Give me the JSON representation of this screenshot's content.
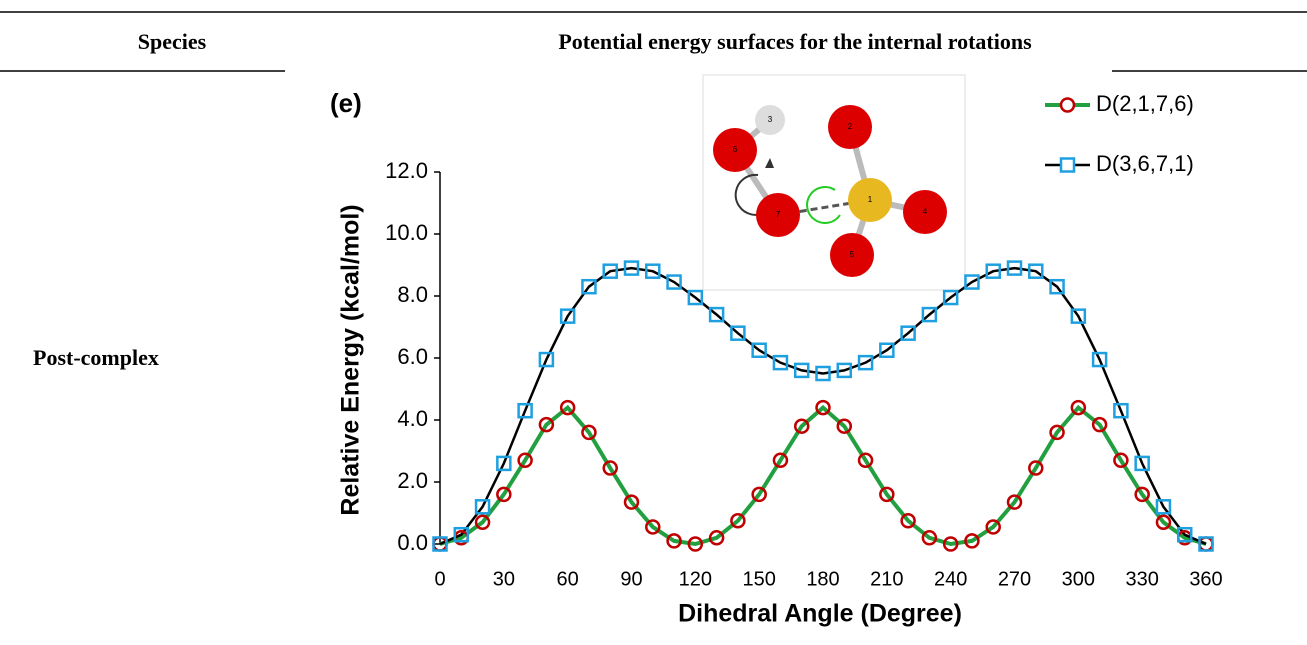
{
  "table": {
    "headers": [
      "Species",
      "Potential energy surfaces for the internal rotations"
    ],
    "rows": [
      [
        "Post-complex"
      ]
    ]
  },
  "inset": {
    "atom_labels": [
      "1",
      "2",
      "3",
      "4",
      "5",
      "6",
      "7"
    ]
  },
  "chart_data": {
    "type": "line",
    "panel_label": "(e)",
    "x_label": "Dihedral Angle (Degree)",
    "y_label": "Relative Energy (kcal/mol)",
    "x": [
      0,
      10,
      20,
      30,
      40,
      50,
      60,
      70,
      80,
      90,
      100,
      110,
      120,
      130,
      140,
      150,
      160,
      170,
      180,
      190,
      200,
      210,
      220,
      230,
      240,
      250,
      260,
      270,
      280,
      290,
      300,
      310,
      320,
      330,
      340,
      350,
      360
    ],
    "series": [
      {
        "name": "D(2,1,7,6)",
        "color": "#22a040",
        "marker": "circle",
        "marker_color": "#c00000",
        "values": [
          0,
          0.2,
          0.7,
          1.6,
          2.7,
          3.85,
          4.4,
          3.6,
          2.45,
          1.35,
          0.55,
          0.1,
          0,
          0.2,
          0.75,
          1.6,
          2.7,
          3.8,
          4.4,
          3.8,
          2.7,
          1.6,
          0.75,
          0.2,
          0,
          0.1,
          0.55,
          1.35,
          2.45,
          3.6,
          4.4,
          3.85,
          2.7,
          1.6,
          0.7,
          0.2,
          0
        ]
      },
      {
        "name": "D(3,6,7,1)",
        "color": "#000000",
        "marker": "square",
        "marker_color": "#1ea0e0",
        "values": [
          0,
          0.3,
          1.2,
          2.6,
          4.3,
          5.95,
          7.35,
          8.3,
          8.8,
          8.9,
          8.8,
          8.45,
          7.95,
          7.4,
          6.8,
          6.25,
          5.85,
          5.6,
          5.5,
          5.6,
          5.85,
          6.25,
          6.8,
          7.4,
          7.95,
          8.45,
          8.8,
          8.9,
          8.8,
          8.3,
          7.35,
          5.95,
          4.3,
          2.6,
          1.2,
          0.3,
          0
        ]
      }
    ],
    "xlim": [
      0,
      360
    ],
    "xticks": [
      0,
      30,
      60,
      90,
      120,
      150,
      180,
      210,
      240,
      270,
      300,
      330,
      360
    ],
    "ylim": [
      0,
      12
    ],
    "yticks": [
      {
        "value": 0,
        "label": "0.0"
      },
      {
        "value": 2,
        "label": "2.0"
      },
      {
        "value": 4,
        "label": "4.0"
      },
      {
        "value": 6,
        "label": "6.0"
      },
      {
        "value": 8,
        "label": "8.0"
      },
      {
        "value": 10,
        "label": "10.0"
      },
      {
        "value": 12,
        "label": "12.0"
      }
    ],
    "legend": "top-right"
  }
}
